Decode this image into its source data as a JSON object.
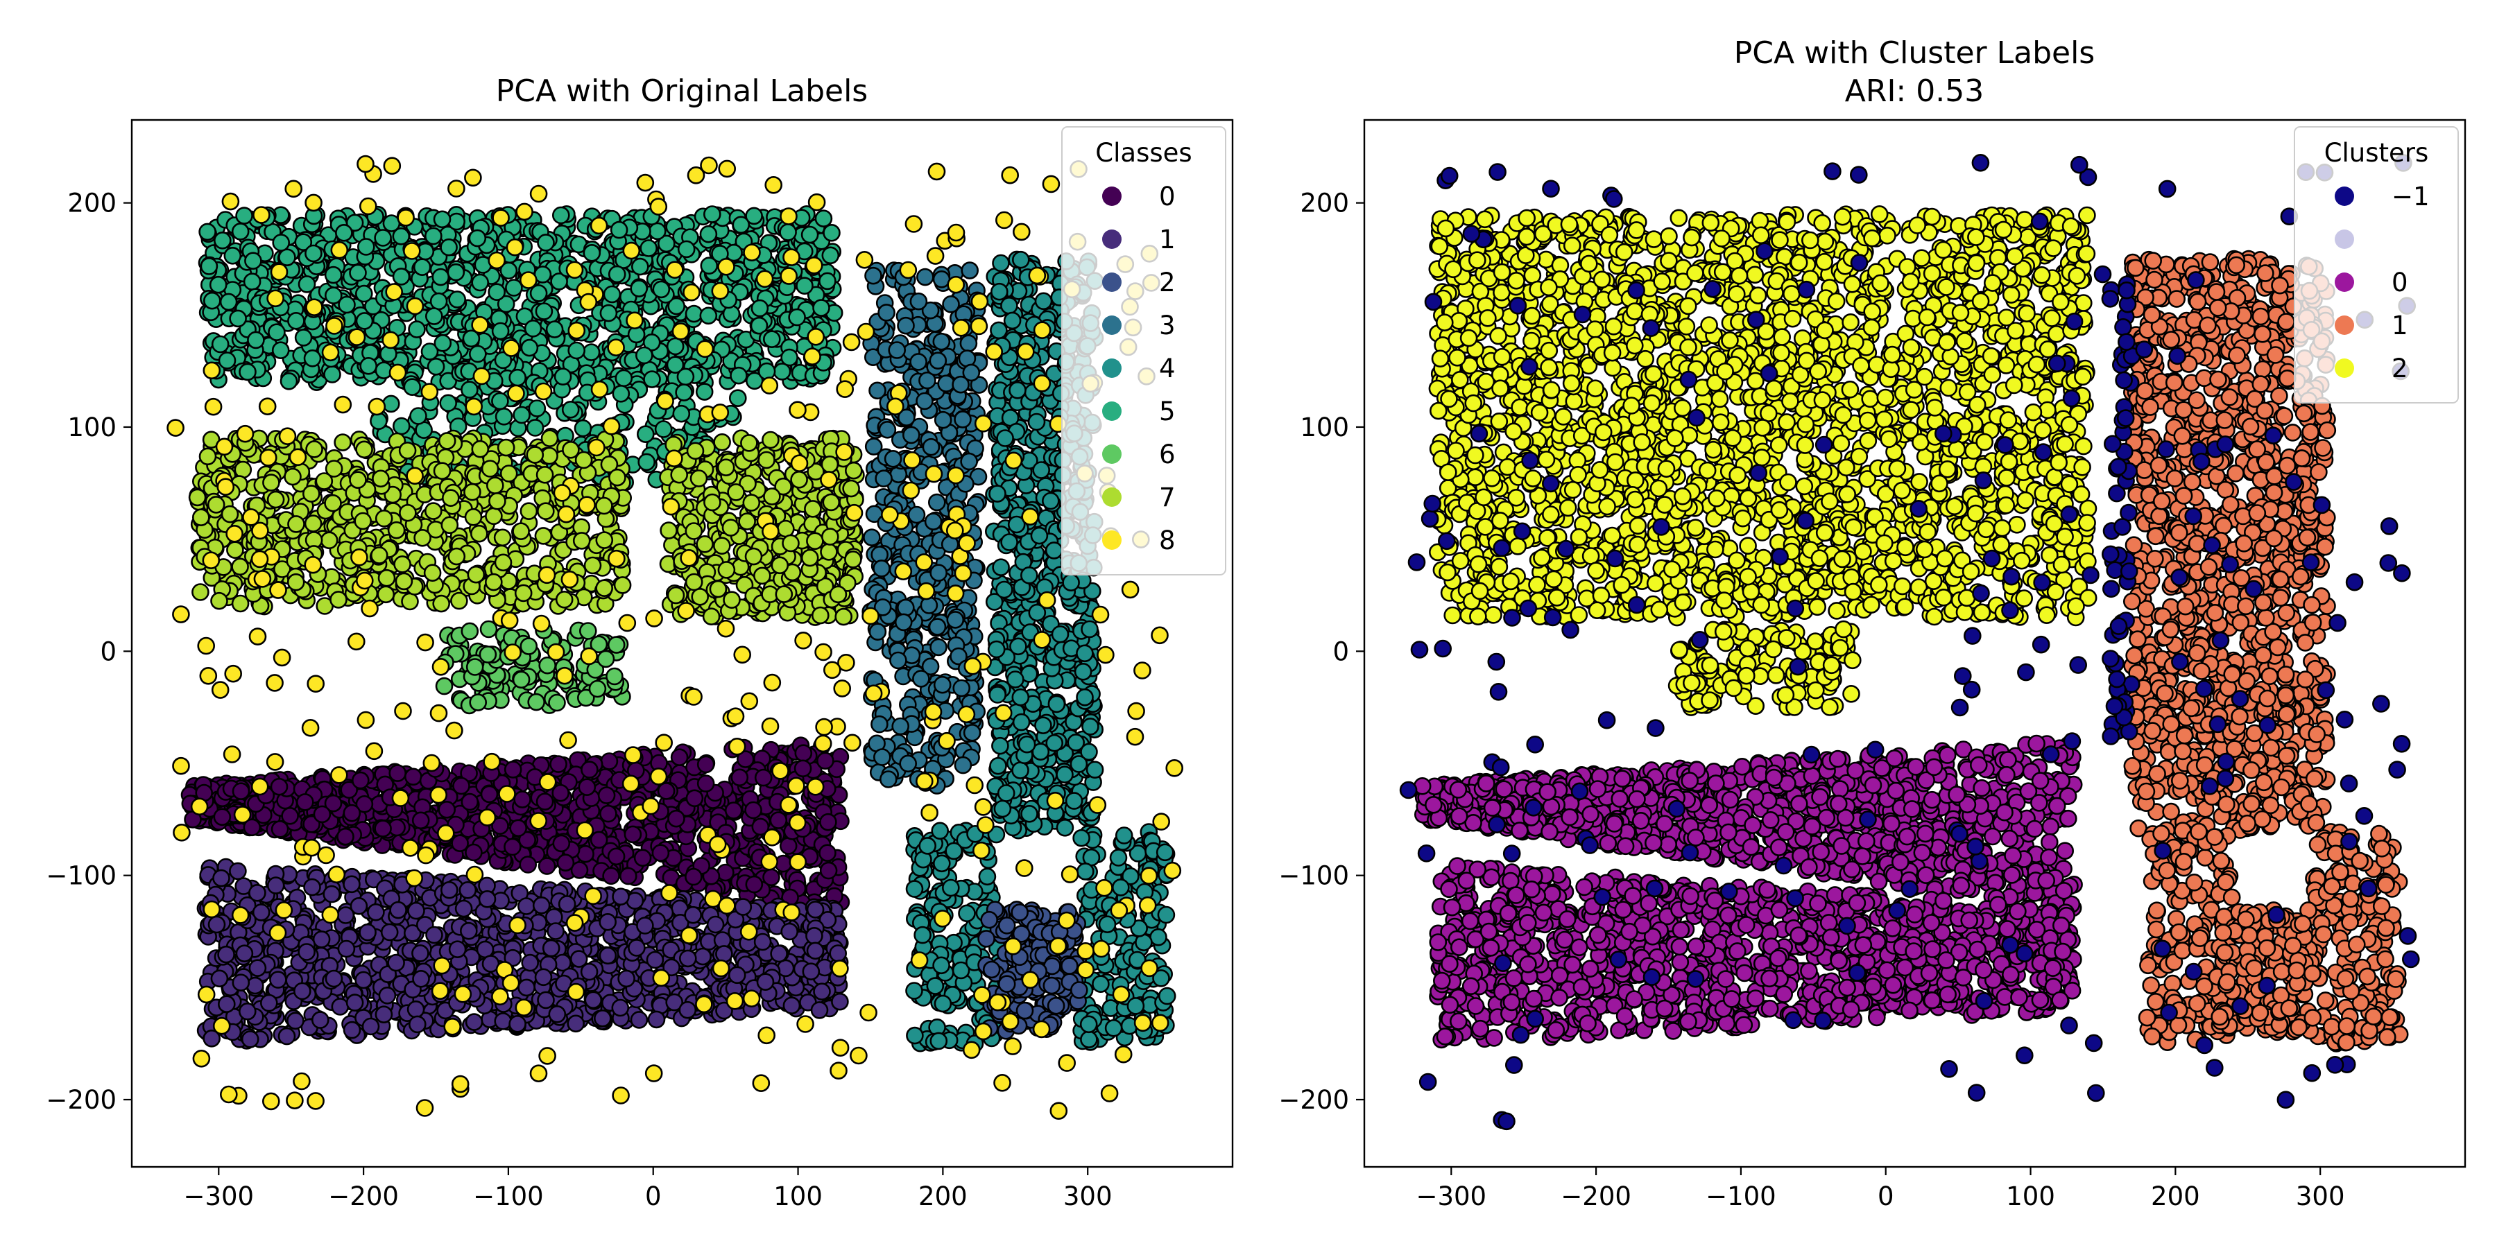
{
  "chart_data": [
    {
      "type": "scatter",
      "title": "PCA with Original Labels",
      "subtitle": "",
      "xlabel": "",
      "ylabel": "",
      "xlim": [
        -360,
        400
      ],
      "ylim": [
        -230,
        237
      ],
      "xticks": [
        -300,
        -200,
        -100,
        0,
        100,
        200,
        300
      ],
      "xtick_labels": [
        "−300",
        "−200",
        "−100",
        "0",
        "100",
        "200",
        "300"
      ],
      "yticks": [
        -200,
        -100,
        0,
        100,
        200
      ],
      "ytick_labels": [
        "−200",
        "−100",
        "0",
        "100",
        "200"
      ],
      "grid": false,
      "legend": {
        "title": "Classes",
        "placement": "top-right",
        "entries": [
          {
            "label": "0",
            "color": "#440154"
          },
          {
            "label": "1",
            "color": "#472d7b"
          },
          {
            "label": "2",
            "color": "#3b528b"
          },
          {
            "label": "3",
            "color": "#2c728e"
          },
          {
            "label": "4",
            "color": "#21918c"
          },
          {
            "label": "5",
            "color": "#28ae80"
          },
          {
            "label": "6",
            "color": "#5ec962"
          },
          {
            "label": "7",
            "color": "#addc30"
          },
          {
            "label": "8",
            "color": "#fde725"
          }
        ]
      },
      "marker_edge_color": "#000000",
      "regions": [
        {
          "label": "5",
          "shape": "rect",
          "x_range": [
            -310,
            125
          ],
          "y_range": [
            120,
            195
          ],
          "approx_points": 1200
        },
        {
          "label": "5",
          "shape": "rect",
          "x_range": [
            -190,
            60
          ],
          "y_range": [
            75,
            125
          ],
          "approx_points": 220
        },
        {
          "label": "7",
          "shape": "rect",
          "x_range": [
            -315,
            -20
          ],
          "y_range": [
            20,
            95
          ],
          "approx_points": 700
        },
        {
          "label": "7",
          "shape": "rect",
          "x_range": [
            10,
            140
          ],
          "y_range": [
            15,
            95
          ],
          "approx_points": 450
        },
        {
          "label": "6",
          "shape": "rect",
          "x_range": [
            -145,
            -20
          ],
          "y_range": [
            -25,
            10
          ],
          "approx_points": 130
        },
        {
          "label": "0",
          "shape": "wedge",
          "x_range": [
            -320,
            130
          ],
          "y_top": [
            -60,
            -40
          ],
          "y_bottom": [
            -75,
            -115
          ],
          "approx_points": 1200
        },
        {
          "label": "1",
          "shape": "wedge",
          "x_range": [
            -310,
            130
          ],
          "y_top": [
            -95,
            -115
          ],
          "y_bottom": [
            -175,
            -160
          ],
          "approx_points": 1200
        },
        {
          "label": "3",
          "shape": "rect",
          "x_range": [
            150,
            225
          ],
          "y_range": [
            -60,
            170
          ],
          "approx_points": 500
        },
        {
          "label": "4",
          "shape": "rect",
          "x_range": [
            235,
            305
          ],
          "y_range": [
            -80,
            175
          ],
          "approx_points": 700
        },
        {
          "label": "4",
          "shape": "rect",
          "x_range": [
            180,
            240
          ],
          "y_range": [
            -175,
            -80
          ],
          "approx_points": 180
        },
        {
          "label": "4",
          "shape": "rect",
          "x_range": [
            295,
            355
          ],
          "y_range": [
            -175,
            -80
          ],
          "approx_points": 180
        },
        {
          "label": "2",
          "shape": "rect",
          "x_range": [
            230,
            295
          ],
          "y_range": [
            -170,
            -115
          ],
          "approx_points": 160
        },
        {
          "label": "8",
          "shape": "scatter-noise",
          "x_range": [
            -330,
            365
          ],
          "y_range": [
            -210,
            218
          ],
          "approx_points": 400
        }
      ]
    },
    {
      "type": "scatter",
      "title": "PCA with Cluster Labels",
      "subtitle": "ARI: 0.53",
      "xlabel": "",
      "ylabel": "",
      "xlim": [
        -360,
        400
      ],
      "ylim": [
        -230,
        237
      ],
      "xticks": [
        -300,
        -200,
        -100,
        0,
        100,
        200,
        300
      ],
      "xtick_labels": [
        "−300",
        "−200",
        "−100",
        "0",
        "100",
        "200",
        "300"
      ],
      "yticks": [
        -200,
        -100,
        0,
        100,
        200
      ],
      "ytick_labels": [
        "−200",
        "−100",
        "0",
        "100",
        "200"
      ],
      "grid": false,
      "adjusted_rand_index": 0.53,
      "legend": {
        "title": "Clusters",
        "placement": "top-right",
        "entries": [
          {
            "label": "−1",
            "color": "#0d0887"
          },
          {
            "label": "",
            "color": "#c8c6e6"
          },
          {
            "label": "0",
            "color": "#9c179e"
          },
          {
            "label": "1",
            "color": "#ed7953"
          },
          {
            "label": "2",
            "color": "#f0f921"
          }
        ]
      },
      "marker_edge_color": "#000000",
      "regions": [
        {
          "label": "2",
          "shape": "rect",
          "x_range": [
            -310,
            140
          ],
          "y_range": [
            15,
            195
          ],
          "approx_points": 2500
        },
        {
          "label": "2",
          "shape": "rect",
          "x_range": [
            -145,
            -20
          ],
          "y_range": [
            -25,
            10
          ],
          "approx_points": 130
        },
        {
          "label": "0",
          "shape": "wedge",
          "x_range": [
            -320,
            130
          ],
          "y_top": [
            -60,
            -40
          ],
          "y_bottom": [
            -75,
            -115
          ],
          "approx_points": 1200
        },
        {
          "label": "0",
          "shape": "wedge",
          "x_range": [
            -310,
            130
          ],
          "y_top": [
            -95,
            -115
          ],
          "y_bottom": [
            -175,
            -160
          ],
          "approx_points": 1200
        },
        {
          "label": "1",
          "shape": "rect",
          "x_range": [
            170,
            305
          ],
          "y_range": [
            -80,
            175
          ],
          "approx_points": 1200
        },
        {
          "label": "1",
          "shape": "rect",
          "x_range": [
            180,
            240
          ],
          "y_range": [
            -175,
            -80
          ],
          "approx_points": 180
        },
        {
          "label": "1",
          "shape": "rect",
          "x_range": [
            295,
            355
          ],
          "y_range": [
            -175,
            -80
          ],
          "approx_points": 180
        },
        {
          "label": "1",
          "shape": "rect",
          "x_range": [
            230,
            295
          ],
          "y_range": [
            -170,
            -115
          ],
          "approx_points": 160
        },
        {
          "label": "−1",
          "shape": "rect",
          "x_range": [
            155,
            170
          ],
          "y_range": [
            -40,
            170
          ],
          "approx_points": 60
        },
        {
          "label": "−1",
          "shape": "scatter-noise",
          "x_range": [
            -330,
            365
          ],
          "y_range": [
            -210,
            218
          ],
          "approx_points": 200
        }
      ]
    }
  ]
}
